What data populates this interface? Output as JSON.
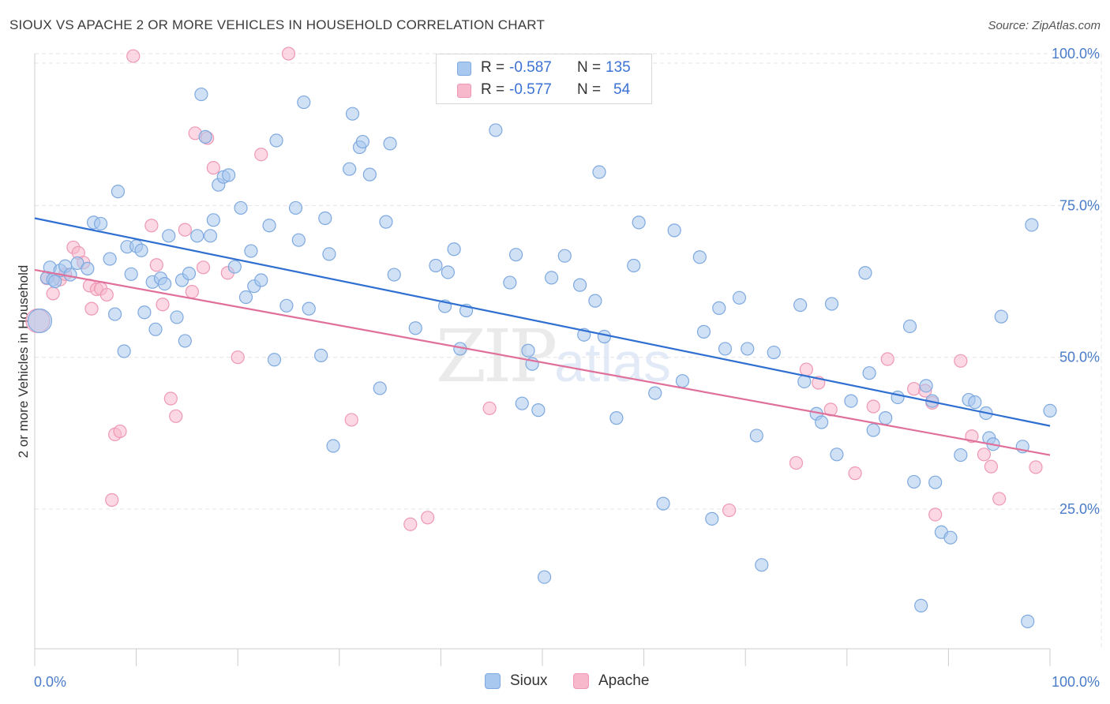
{
  "title": "SIOUX VS APACHE 2 OR MORE VEHICLES IN HOUSEHOLD CORRELATION CHART",
  "source": "Source: ZipAtlas.com",
  "watermark": {
    "zip": "ZIP",
    "atlas": "atlas"
  },
  "legend": {
    "series": [
      {
        "r_label": "R = ",
        "r_value": "-0.587",
        "n_label": "N = ",
        "n_value": "135"
      },
      {
        "r_label": "R = ",
        "r_value": "-0.577",
        "n_label": "N = ",
        "n_value": "54"
      }
    ]
  },
  "bottom_legend": {
    "sioux": "Sioux",
    "apache": "Apache"
  },
  "colors": {
    "sioux_fill": "#a9c8ef",
    "sioux_stroke": "#7ea9df",
    "sioux_line": "#2f6fd1",
    "apache_fill": "#f7b8cc",
    "apache_stroke": "#ee98b4",
    "apache_line": "#e0709a",
    "grid": "#e4e4e4",
    "axis": "#cccccc",
    "tick_text": "#4a7cc9"
  },
  "chart_data": {
    "type": "scatter",
    "title": "SIOUX VS APACHE 2 OR MORE VEHICLES IN HOUSEHOLD CORRELATION CHART",
    "xlabel": "",
    "ylabel": "2 or more Vehicles in Household",
    "xlim": [
      0,
      100
    ],
    "ylim": [
      2,
      100
    ],
    "x_tick_labels": [
      "0.0%",
      "100.0%"
    ],
    "y_ticks": [
      25,
      50,
      75,
      100
    ],
    "y_tick_labels": [
      "25.0%",
      "50.0%",
      "75.0%",
      "100.0%"
    ],
    "grid": true,
    "legend_position": "top-center",
    "series": [
      {
        "name": "Sioux",
        "trend": {
          "x": [
            0,
            100
          ],
          "y": [
            72.9,
            38.7
          ]
        },
        "points": [
          [
            0.5,
            56.0
          ],
          [
            1.2,
            63.1
          ],
          [
            1.5,
            64.8
          ],
          [
            1.8,
            62.8
          ],
          [
            2.0,
            62.5
          ],
          [
            2.5,
            64.3
          ],
          [
            3.0,
            65.0
          ],
          [
            3.5,
            63.6
          ],
          [
            4.2,
            65.5
          ],
          [
            5.2,
            64.6
          ],
          [
            5.8,
            72.2
          ],
          [
            6.5,
            72.0
          ],
          [
            7.4,
            66.2
          ],
          [
            7.9,
            57.1
          ],
          [
            8.2,
            77.3
          ],
          [
            8.8,
            51.0
          ],
          [
            9.1,
            68.2
          ],
          [
            9.5,
            63.7
          ],
          [
            10.0,
            68.3
          ],
          [
            10.5,
            67.6
          ],
          [
            10.8,
            57.4
          ],
          [
            11.6,
            62.4
          ],
          [
            11.9,
            54.6
          ],
          [
            12.4,
            63.0
          ],
          [
            12.8,
            62.1
          ],
          [
            13.2,
            70.0
          ],
          [
            14.0,
            56.6
          ],
          [
            14.5,
            62.7
          ],
          [
            14.8,
            52.7
          ],
          [
            15.2,
            63.8
          ],
          [
            16.0,
            70.0
          ],
          [
            16.4,
            93.3
          ],
          [
            16.8,
            86.3
          ],
          [
            17.3,
            70.0
          ],
          [
            17.6,
            72.6
          ],
          [
            18.1,
            78.4
          ],
          [
            18.6,
            79.7
          ],
          [
            19.1,
            80.0
          ],
          [
            19.7,
            64.9
          ],
          [
            20.3,
            74.6
          ],
          [
            20.8,
            59.9
          ],
          [
            21.3,
            67.5
          ],
          [
            21.6,
            61.7
          ],
          [
            22.3,
            62.7
          ],
          [
            23.1,
            71.7
          ],
          [
            23.6,
            49.6
          ],
          [
            23.8,
            85.7
          ],
          [
            24.8,
            58.5
          ],
          [
            25.7,
            74.6
          ],
          [
            26.0,
            69.3
          ],
          [
            26.5,
            92.0
          ],
          [
            27.0,
            58.0
          ],
          [
            28.2,
            50.3
          ],
          [
            28.6,
            72.9
          ],
          [
            29.0,
            67.0
          ],
          [
            29.4,
            35.4
          ],
          [
            31.0,
            81.0
          ],
          [
            31.3,
            90.1
          ],
          [
            32.0,
            84.6
          ],
          [
            32.3,
            85.5
          ],
          [
            33.0,
            80.1
          ],
          [
            34.0,
            44.9
          ],
          [
            34.6,
            72.3
          ],
          [
            35.0,
            85.2
          ],
          [
            35.4,
            63.6
          ],
          [
            37.5,
            54.8
          ],
          [
            39.5,
            65.1
          ],
          [
            40.4,
            58.4
          ],
          [
            40.7,
            64.0
          ],
          [
            41.3,
            67.8
          ],
          [
            41.9,
            51.4
          ],
          [
            42.5,
            57.7
          ],
          [
            45.4,
            87.4
          ],
          [
            46.8,
            62.3
          ],
          [
            47.4,
            66.9
          ],
          [
            48.0,
            42.4
          ],
          [
            48.6,
            51.1
          ],
          [
            49.0,
            48.9
          ],
          [
            49.6,
            41.3
          ],
          [
            50.2,
            13.8
          ],
          [
            50.9,
            63.1
          ],
          [
            52.2,
            66.7
          ],
          [
            53.7,
            61.9
          ],
          [
            54.1,
            53.7
          ],
          [
            55.2,
            59.3
          ],
          [
            55.6,
            80.5
          ],
          [
            56.1,
            53.4
          ],
          [
            57.3,
            40.0
          ],
          [
            59.0,
            65.1
          ],
          [
            59.5,
            72.2
          ],
          [
            61.1,
            44.1
          ],
          [
            61.9,
            25.9
          ],
          [
            63.0,
            70.9
          ],
          [
            63.8,
            46.1
          ],
          [
            65.5,
            66.5
          ],
          [
            65.9,
            54.2
          ],
          [
            66.7,
            23.4
          ],
          [
            67.4,
            58.1
          ],
          [
            68.0,
            51.4
          ],
          [
            69.4,
            59.8
          ],
          [
            70.2,
            51.4
          ],
          [
            71.1,
            37.1
          ],
          [
            71.6,
            15.8
          ],
          [
            72.8,
            50.8
          ],
          [
            75.4,
            58.6
          ],
          [
            75.8,
            46.0
          ],
          [
            77.0,
            40.7
          ],
          [
            77.5,
            39.3
          ],
          [
            78.5,
            58.8
          ],
          [
            79.0,
            34.0
          ],
          [
            80.4,
            42.8
          ],
          [
            81.8,
            63.9
          ],
          [
            82.2,
            47.4
          ],
          [
            82.6,
            38.0
          ],
          [
            83.8,
            40.0
          ],
          [
            85.0,
            43.4
          ],
          [
            86.2,
            55.1
          ],
          [
            86.6,
            29.5
          ],
          [
            87.3,
            9.1
          ],
          [
            87.8,
            45.3
          ],
          [
            88.4,
            42.8
          ],
          [
            88.7,
            29.4
          ],
          [
            89.3,
            21.2
          ],
          [
            90.2,
            20.3
          ],
          [
            91.2,
            33.9
          ],
          [
            92.0,
            43.0
          ],
          [
            92.6,
            42.6
          ],
          [
            93.7,
            40.8
          ],
          [
            94.0,
            36.7
          ],
          [
            94.4,
            35.7
          ],
          [
            95.2,
            56.7
          ],
          [
            97.3,
            35.3
          ],
          [
            97.8,
            6.5
          ],
          [
            98.2,
            71.8
          ],
          [
            100.0,
            41.2
          ]
        ]
      },
      {
        "name": "Apache",
        "trend": {
          "x": [
            0,
            100
          ],
          "y": [
            64.4,
            33.9
          ]
        },
        "points": [
          [
            0.3,
            56.0
          ],
          [
            1.2,
            63.0
          ],
          [
            1.8,
            60.5
          ],
          [
            2.5,
            62.8
          ],
          [
            3.0,
            63.7
          ],
          [
            3.8,
            68.1
          ],
          [
            4.3,
            67.2
          ],
          [
            4.8,
            65.6
          ],
          [
            5.4,
            61.8
          ],
          [
            5.6,
            58.0
          ],
          [
            6.1,
            61.2
          ],
          [
            6.5,
            61.3
          ],
          [
            7.1,
            60.3
          ],
          [
            7.6,
            26.5
          ],
          [
            7.9,
            37.3
          ],
          [
            8.4,
            37.8
          ],
          [
            9.7,
            99.6
          ],
          [
            11.5,
            71.7
          ],
          [
            12.0,
            65.2
          ],
          [
            12.6,
            58.7
          ],
          [
            13.4,
            43.2
          ],
          [
            13.9,
            40.3
          ],
          [
            14.8,
            71.0
          ],
          [
            15.5,
            60.8
          ],
          [
            15.8,
            86.9
          ],
          [
            16.6,
            64.8
          ],
          [
            17.0,
            86.1
          ],
          [
            17.6,
            81.2
          ],
          [
            19.0,
            63.9
          ],
          [
            20.0,
            50.0
          ],
          [
            22.3,
            83.4
          ],
          [
            25.0,
            100.0
          ],
          [
            31.2,
            39.7
          ],
          [
            37.0,
            22.5
          ],
          [
            38.7,
            23.6
          ],
          [
            44.8,
            41.6
          ],
          [
            68.4,
            24.8
          ],
          [
            75.0,
            32.6
          ],
          [
            76.0,
            48.0
          ],
          [
            77.2,
            45.8
          ],
          [
            78.4,
            41.4
          ],
          [
            80.8,
            30.9
          ],
          [
            82.6,
            41.9
          ],
          [
            84.0,
            49.7
          ],
          [
            86.6,
            44.8
          ],
          [
            87.7,
            44.5
          ],
          [
            88.4,
            42.5
          ],
          [
            88.7,
            24.1
          ],
          [
            91.2,
            49.4
          ],
          [
            92.3,
            37.0
          ],
          [
            93.5,
            34.0
          ],
          [
            94.2,
            32.0
          ],
          [
            95.0,
            26.7
          ],
          [
            98.6,
            31.9
          ]
        ]
      }
    ]
  }
}
